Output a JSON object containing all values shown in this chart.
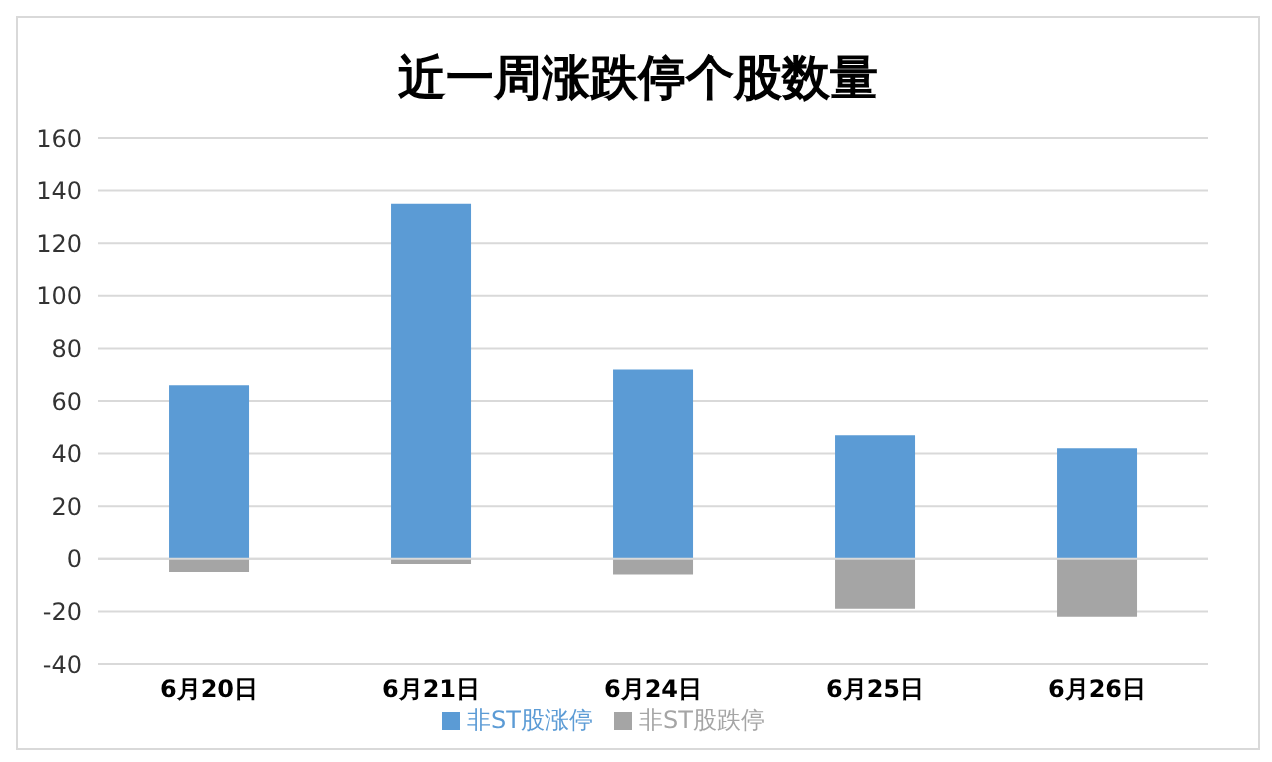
{
  "chart_data": {
    "type": "bar",
    "title": "近一周涨跌停个股数量",
    "categories": [
      "6月20日",
      "6月21日",
      "6月24日",
      "6月25日",
      "6月26日"
    ],
    "stacked": true,
    "series": [
      {
        "name": "非ST股涨停",
        "color": "#5b9bd5",
        "values": [
          66,
          135,
          72,
          47,
          42
        ]
      },
      {
        "name": "非ST股跌停",
        "color": "#a5a5a5",
        "values": [
          -5,
          -2,
          -6,
          -19,
          -22
        ]
      }
    ],
    "ylim": [
      -40,
      160
    ],
    "yticks": [
      -40,
      -20,
      0,
      20,
      40,
      60,
      80,
      100,
      120,
      140,
      160
    ],
    "grid": "y",
    "legend": "bottom"
  }
}
